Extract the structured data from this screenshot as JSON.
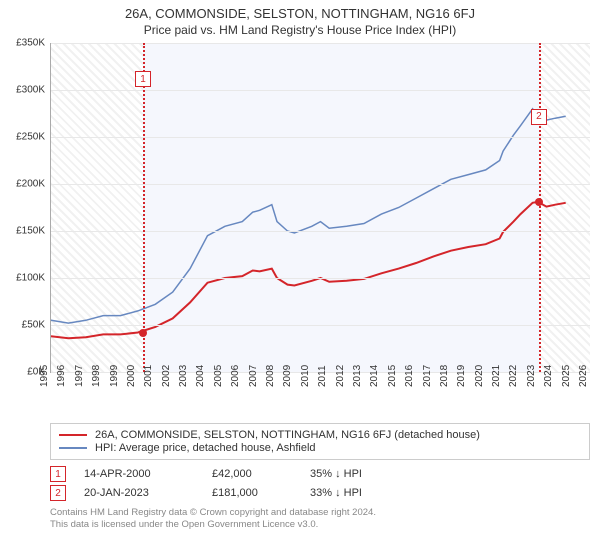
{
  "title": "26A, COMMONSIDE, SELSTON, NOTTINGHAM, NG16 6FJ",
  "subtitle": "Price paid vs. HM Land Registry's House Price Index (HPI)",
  "chart": {
    "type": "line",
    "x_years": [
      1995,
      1996,
      1997,
      1998,
      1999,
      2000,
      2001,
      2002,
      2003,
      2004,
      2005,
      2006,
      2007,
      2008,
      2009,
      2010,
      2011,
      2012,
      2013,
      2014,
      2015,
      2016,
      2017,
      2018,
      2019,
      2020,
      2021,
      2022,
      2023,
      2024,
      2025,
      2026
    ],
    "ylim": [
      0,
      350
    ],
    "ytick_step": 50,
    "ytick_prefix": "£",
    "ytick_suffix": "K",
    "grid_color": "#e8e8e8",
    "axis_color": "#aaaaaa",
    "background_color": "#ffffff",
    "hatch_ranges_years": [
      [
        1995,
        2000.29
      ],
      [
        2023.06,
        2026
      ]
    ],
    "shade_range_years": [
      2000.29,
      2023.06
    ],
    "title_fontsize": 13,
    "subtitle_fontsize": 12,
    "tick_fontsize": 10,
    "series": [
      {
        "id": "hpi",
        "label": "HPI: Average price, detached house, Ashfield",
        "color": "#6788c0",
        "width": 1.5,
        "points_year_value": [
          [
            1995,
            55
          ],
          [
            1996,
            52
          ],
          [
            1997,
            55
          ],
          [
            1998,
            60
          ],
          [
            1999,
            60
          ],
          [
            2000,
            65
          ],
          [
            2001,
            72
          ],
          [
            2002,
            85
          ],
          [
            2003,
            110
          ],
          [
            2004,
            145
          ],
          [
            2005,
            155
          ],
          [
            2006,
            160
          ],
          [
            2006.6,
            170
          ],
          [
            2007,
            172
          ],
          [
            2007.7,
            178
          ],
          [
            2008,
            160
          ],
          [
            2008.6,
            150
          ],
          [
            2009,
            148
          ],
          [
            2010,
            155
          ],
          [
            2010.5,
            160
          ],
          [
            2011,
            153
          ],
          [
            2012,
            155
          ],
          [
            2013,
            158
          ],
          [
            2014,
            168
          ],
          [
            2015,
            175
          ],
          [
            2016,
            185
          ],
          [
            2017,
            195
          ],
          [
            2018,
            205
          ],
          [
            2019,
            210
          ],
          [
            2020,
            215
          ],
          [
            2020.8,
            225
          ],
          [
            2021,
            235
          ],
          [
            2021.6,
            252
          ],
          [
            2022,
            262
          ],
          [
            2022.7,
            280
          ],
          [
            2023,
            272
          ],
          [
            2023.5,
            268
          ],
          [
            2024,
            270
          ],
          [
            2024.6,
            272
          ]
        ]
      },
      {
        "id": "property",
        "label": "26A, COMMONSIDE, SELSTON, NOTTINGHAM, NG16 6FJ (detached house)",
        "color": "#d4252a",
        "width": 2,
        "points_year_value": [
          [
            1995,
            38
          ],
          [
            1996,
            36
          ],
          [
            1997,
            37
          ],
          [
            1998,
            40
          ],
          [
            1999,
            40
          ],
          [
            2000,
            42
          ],
          [
            2001,
            48
          ],
          [
            2002,
            57
          ],
          [
            2003,
            74
          ],
          [
            2004,
            95
          ],
          [
            2005,
            100
          ],
          [
            2006,
            102
          ],
          [
            2006.6,
            108
          ],
          [
            2007,
            107
          ],
          [
            2007.7,
            110
          ],
          [
            2008,
            100
          ],
          [
            2008.6,
            93
          ],
          [
            2009,
            92
          ],
          [
            2010,
            97
          ],
          [
            2010.5,
            100
          ],
          [
            2011,
            96
          ],
          [
            2012,
            97
          ],
          [
            2013,
            99
          ],
          [
            2014,
            105
          ],
          [
            2015,
            110
          ],
          [
            2016,
            116
          ],
          [
            2017,
            123
          ],
          [
            2018,
            129
          ],
          [
            2019,
            133
          ],
          [
            2020,
            136
          ],
          [
            2020.8,
            142
          ],
          [
            2021,
            149
          ],
          [
            2021.6,
            160
          ],
          [
            2022,
            168
          ],
          [
            2022.7,
            180
          ],
          [
            2023,
            181
          ],
          [
            2023.5,
            176
          ],
          [
            2024,
            178
          ],
          [
            2024.6,
            180
          ]
        ]
      }
    ],
    "markers": [
      {
        "n": "1",
        "year": 2000.29,
        "y_value": 42,
        "color": "#d4252a",
        "label_y_value": 320
      },
      {
        "n": "2",
        "year": 2023.06,
        "y_value": 181,
        "color": "#d4252a",
        "label_y_value": 280
      }
    ]
  },
  "legend": [
    {
      "color": "#d4252a",
      "text": "26A, COMMONSIDE, SELSTON, NOTTINGHAM, NG16 6FJ (detached house)"
    },
    {
      "color": "#6788c0",
      "text": "HPI: Average price, detached house, Ashfield"
    }
  ],
  "events": [
    {
      "n": "1",
      "color": "#d4252a",
      "date": "14-APR-2000",
      "price": "£42,000",
      "pct": "35% ↓ HPI"
    },
    {
      "n": "2",
      "color": "#d4252a",
      "date": "20-JAN-2023",
      "price": "£181,000",
      "pct": "33% ↓ HPI"
    }
  ],
  "footer": {
    "line1": "Contains HM Land Registry data © Crown copyright and database right 2024.",
    "line2": "This data is licensed under the Open Government Licence v3.0."
  }
}
